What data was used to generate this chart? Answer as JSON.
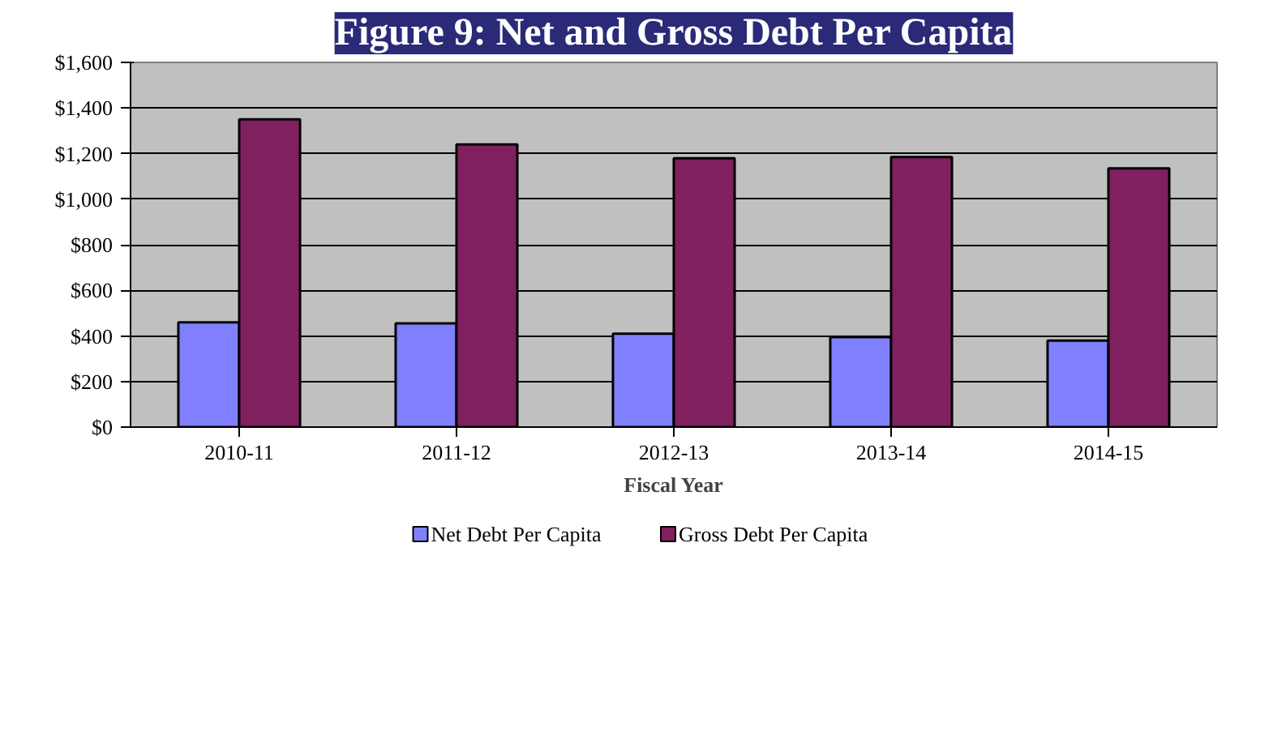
{
  "chart_data": {
    "type": "bar",
    "title": "Figure 9: Net and Gross Debt Per Capita",
    "xlabel": "Fiscal Year",
    "categories": [
      "2010-11",
      "2011-12",
      "2012-13",
      "2013-14",
      "2014-15"
    ],
    "series": [
      {
        "name": "Net Debt Per Capita",
        "color": "#8080ff",
        "values": [
          460,
          455,
          410,
          395,
          380
        ]
      },
      {
        "name": "Gross Debt Per Capita",
        "color": "#80205f",
        "values": [
          1350,
          1240,
          1180,
          1185,
          1135
        ]
      }
    ],
    "ylim": [
      0,
      1600
    ],
    "yticks": [
      {
        "value": 0,
        "label": "$0"
      },
      {
        "value": 200,
        "label": "$200"
      },
      {
        "value": 400,
        "label": "$400"
      },
      {
        "value": 600,
        "label": "$600"
      },
      {
        "value": 800,
        "label": "$800"
      },
      {
        "value": 1000,
        "label": "$1,000"
      },
      {
        "value": 1200,
        "label": "$1,200"
      },
      {
        "value": 1400,
        "label": "$1,400"
      },
      {
        "value": 1600,
        "label": "$1,600"
      }
    ],
    "grid": "y",
    "legend": "bottom"
  }
}
